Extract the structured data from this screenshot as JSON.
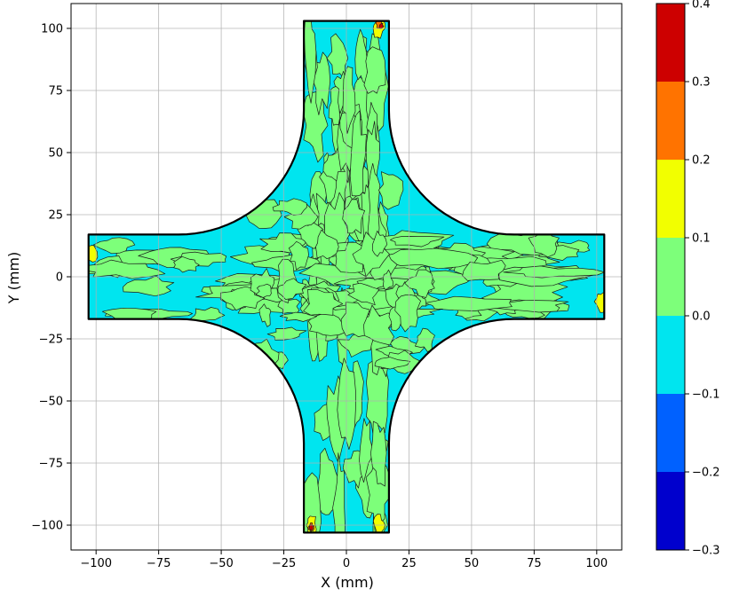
{
  "chart_data": {
    "type": "contour",
    "xlabel": "X (mm)",
    "ylabel": "Y (mm)",
    "xlim": [
      -110,
      110
    ],
    "ylim": [
      -110,
      110
    ],
    "xticks": [
      -100,
      -75,
      -50,
      -25,
      0,
      25,
      50,
      75,
      100
    ],
    "xtick_labels": [
      "−100",
      "−75",
      "−50",
      "−25",
      "0",
      "25",
      "50",
      "75",
      "100"
    ],
    "yticks": [
      -100,
      -75,
      -50,
      -25,
      0,
      25,
      50,
      75,
      100
    ],
    "ytick_labels": [
      "−100",
      "−75",
      "−50",
      "−25",
      "0",
      "25",
      "50",
      "75",
      "100"
    ],
    "grid": true,
    "shape": {
      "arm_half_width_tip": 17,
      "arm_length": 103,
      "fillet_radius": 50,
      "fillet_center": 67,
      "outline_color": "#000000"
    },
    "colorbar": {
      "levels": [
        -0.3,
        -0.2,
        -0.1,
        0.0,
        0.1,
        0.2,
        0.3,
        0.4
      ],
      "tick_labels": [
        "−0.3",
        "−0.2",
        "−0.1",
        "0.0",
        "0.1",
        "0.2",
        "0.3",
        "0.4"
      ],
      "colors": [
        "#0000cd",
        "#0061ff",
        "#00e5ef",
        "#7dff7a",
        "#f2ff00",
        "#ff7300",
        "#cd0000"
      ]
    },
    "field_description": {
      "dominant_bands": [
        [
          -0.1,
          0.0
        ],
        [
          0.0,
          0.1
        ]
      ],
      "hotspots": [
        {
          "x": 13,
          "y": 100,
          "band": [
            0.1,
            0.3
          ]
        },
        {
          "x": -14,
          "y": -100,
          "band": [
            0.1,
            0.3
          ]
        },
        {
          "x": 13,
          "y": -100,
          "band": [
            0.1,
            0.2
          ]
        },
        {
          "x": -102,
          "y": 10,
          "band": [
            0.1,
            0.2
          ]
        },
        {
          "x": 102,
          "y": -10,
          "band": [
            0.1,
            0.2
          ]
        }
      ]
    }
  }
}
